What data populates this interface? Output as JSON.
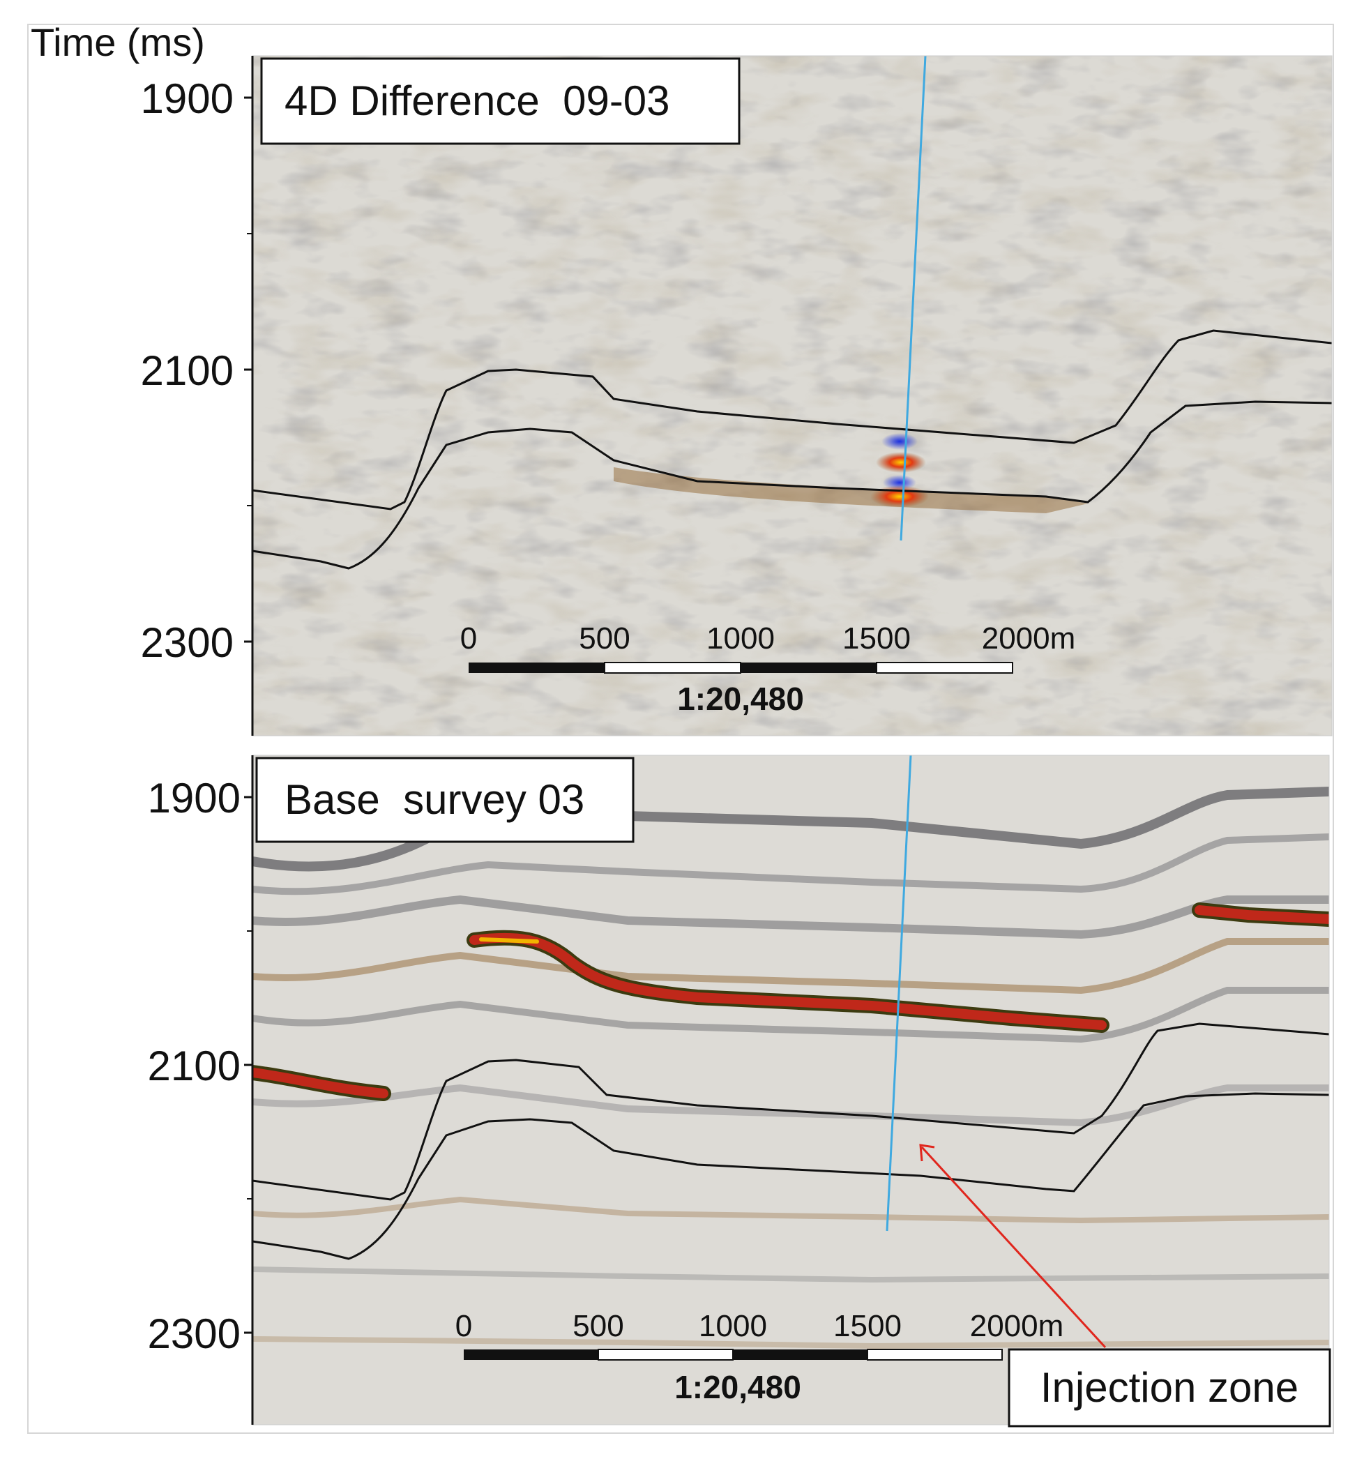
{
  "axis": {
    "title": "Time (ms)",
    "ticks": [
      "1900",
      "2100",
      "2300"
    ]
  },
  "panels": [
    {
      "title": "4D Difference  09-03",
      "scale_bar": {
        "labels": [
          "0",
          "500",
          "1000",
          "1500",
          "2000m"
        ],
        "ratio": "1:20,480"
      }
    },
    {
      "title": "Base  survey 03",
      "scale_bar": {
        "labels": [
          "0",
          "500",
          "1000",
          "1500",
          "2000m"
        ],
        "ratio": "1:20,480"
      },
      "annotation": "Injection zone"
    }
  ],
  "colors": {
    "seismic_background": "#d9d6cf",
    "positive_amplitude": "#8a5a24",
    "strong_amplitude": "#c0281a",
    "negative_amplitude": "#2231c8",
    "well_trajectory": "#3fa9e0",
    "annotation_arrow": "#e0261d",
    "horizon": "#111111"
  }
}
